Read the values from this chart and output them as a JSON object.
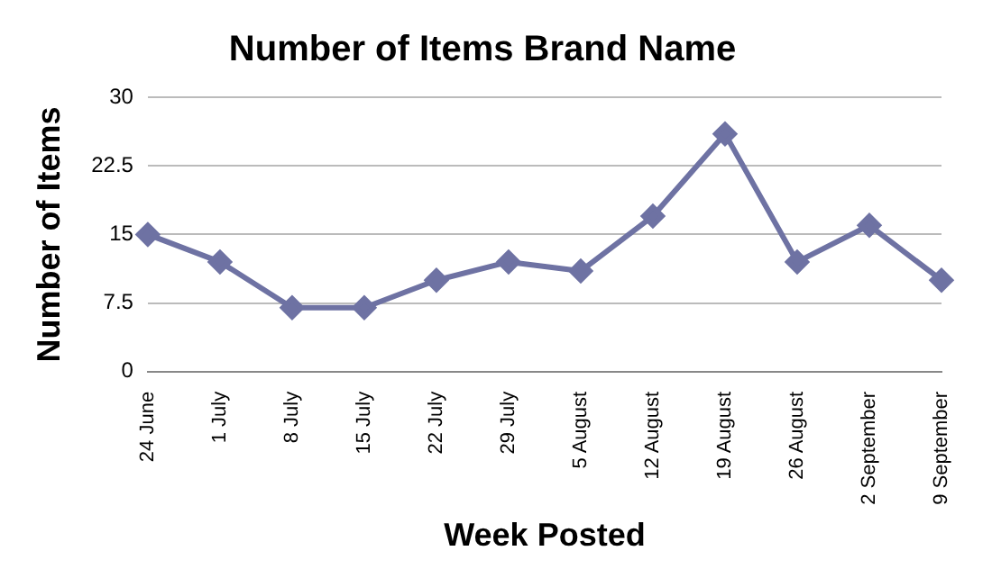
{
  "chart_data": {
    "type": "line",
    "title": "Number of Items Brand Name",
    "xlabel": "Week Posted",
    "ylabel": "Number of Items",
    "categories": [
      "24 June",
      "1 July",
      "8 July",
      "15 July",
      "22 July",
      "29 July",
      "5 August",
      "12 August",
      "19 August",
      "26 August",
      "2 September",
      "9 September"
    ],
    "series": [
      {
        "color": "#6e72a3",
        "values": [
          15,
          12,
          7,
          7,
          10,
          12,
          11,
          17,
          26,
          12,
          16,
          10
        ]
      }
    ],
    "ylim": [
      0,
      30
    ],
    "yticks": [
      0,
      7.5,
      15,
      22.5,
      30
    ],
    "grid": "y",
    "legend": false,
    "marker": "diamond",
    "line_style": "solid"
  }
}
